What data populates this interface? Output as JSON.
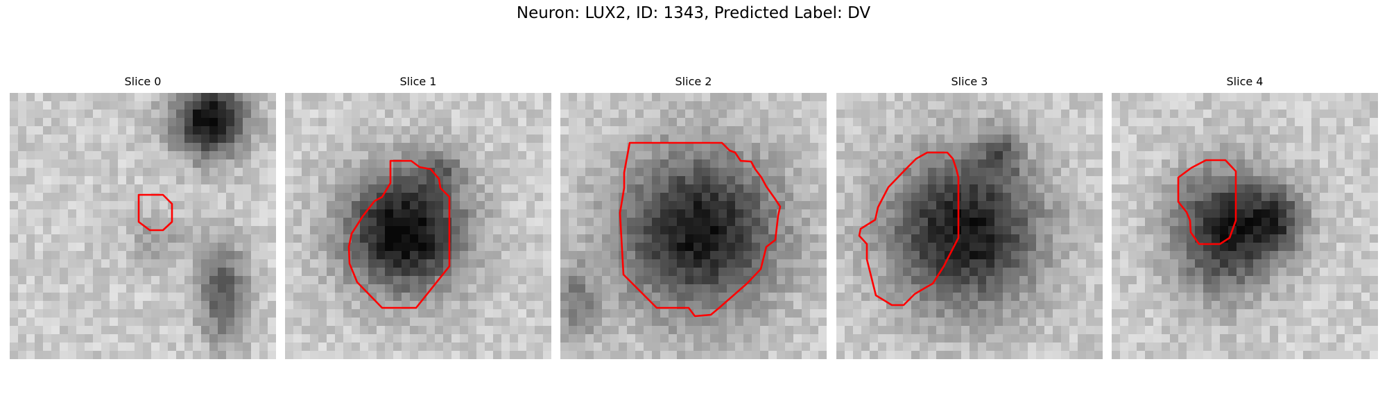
{
  "figure": {
    "title": "Neuron: LUX2, ID: 1343, Predicted Label: DV",
    "contour_color": "#ff0000"
  },
  "panels": [
    {
      "title": "Slice 0"
    },
    {
      "title": "Slice 1"
    },
    {
      "title": "Slice 2"
    },
    {
      "title": "Slice 3"
    },
    {
      "title": "Slice 4"
    }
  ]
}
